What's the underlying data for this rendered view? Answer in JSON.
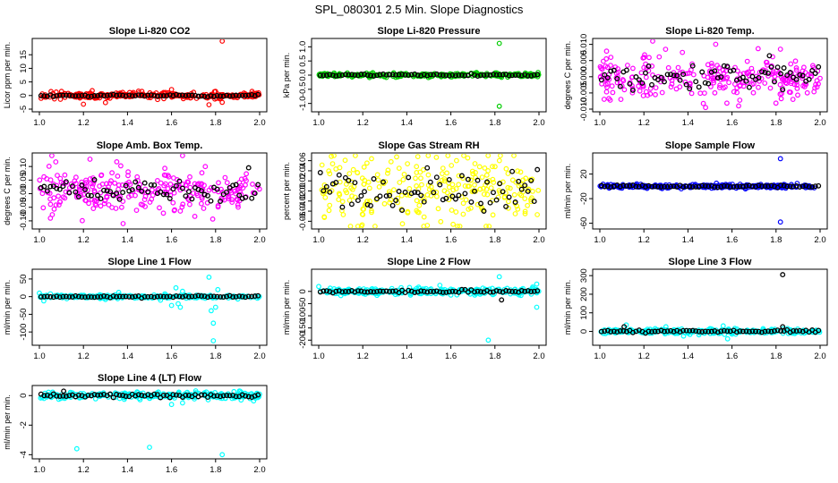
{
  "title": "SPL_080301  2.5 Min. Slope Diagnostics",
  "colors": {
    "red": "#ff0000",
    "green": "#00cc00",
    "magenta": "#ff00ff",
    "yellow": "#ffff00",
    "blue": "#0000ff",
    "cyan": "#00ffff",
    "black": "#000000"
  },
  "chart_data": [
    {
      "type": "scatter",
      "title": "Slope Li-820 CO2",
      "ylabel": "Licor ppm per min.",
      "xlim": [
        1.0,
        2.0
      ],
      "ylim": [
        -5,
        20
      ],
      "xticks": [
        "1.0",
        "1.2",
        "1.4",
        "1.6",
        "1.8",
        "2.0"
      ],
      "yticks": [
        "-5",
        "0",
        "5",
        "10",
        "15"
      ],
      "color": "red",
      "center": 0,
      "spread": 0.7,
      "outliers": [
        [
          1.2,
          -3.2
        ],
        [
          1.24,
          1.8
        ],
        [
          1.3,
          -2.6
        ],
        [
          1.45,
          1.6
        ],
        [
          1.6,
          2.2
        ],
        [
          1.7,
          1.2
        ],
        [
          1.77,
          -3.4
        ],
        [
          1.83,
          20.5
        ],
        [
          1.83,
          -2.5
        ],
        [
          1.8,
          1.5
        ]
      ],
      "black_spread": 0.3,
      "black_outliers": []
    },
    {
      "type": "scatter",
      "title": "Slope Li-820 Pressure",
      "ylabel": "kPa per min.",
      "xlim": [
        1.0,
        2.0
      ],
      "ylim": [
        -1.2,
        1.2
      ],
      "xticks": [
        "1.0",
        "1.2",
        "1.4",
        "1.6",
        "1.8",
        "2.0"
      ],
      "yticks": [
        "-1.0",
        "-0.5",
        "0.0",
        "0.5",
        "1.0"
      ],
      "color": "green",
      "center": 0,
      "spread": 0.04,
      "outliers": [
        [
          1.82,
          1.12
        ],
        [
          1.82,
          -1.1
        ],
        [
          1.83,
          -0.08
        ],
        [
          1.13,
          0.08
        ],
        [
          1.04,
          0.05
        ]
      ],
      "black_spread": 0.03,
      "black_outliers": []
    },
    {
      "type": "scatter",
      "title": "Slope Li-820 Temp.",
      "ylabel": "degrees C per min.",
      "xlim": [
        1.0,
        2.0
      ],
      "ylim": [
        -0.01,
        0.011
      ],
      "xticks": [
        "1.0",
        "1.2",
        "1.4",
        "1.6",
        "1.8",
        "2.0"
      ],
      "yticks": [
        "-0.010",
        "-0.005",
        "0.000",
        "0.005",
        "0.010"
      ],
      "color": "magenta",
      "center": 0,
      "spread": 0.004,
      "outliers": [
        [
          1.24,
          0.011
        ],
        [
          1.48,
          -0.0095
        ],
        [
          1.63,
          -0.009
        ],
        [
          1.82,
          0.0085
        ],
        [
          1.05,
          0.006
        ]
      ],
      "black_spread": 0.0025,
      "black_outliers": [
        [
          1.77,
          0.0065
        ],
        [
          1.83,
          -0.004
        ]
      ]
    },
    {
      "type": "scatter",
      "title": "Slope Amb. Box Temp.",
      "ylabel": "degrees C per min.",
      "xlim": [
        1.0,
        2.0
      ],
      "ylim": [
        -0.12,
        0.14
      ],
      "xticks": [
        "1.0",
        "1.2",
        "1.4",
        "1.6",
        "1.8",
        "2.0"
      ],
      "yticks": [
        "-0.10",
        "-0.05",
        "0.00",
        "0.05",
        "0.10"
      ],
      "color": "magenta",
      "center": 0.01,
      "spread": 0.05,
      "outliers": [
        [
          1.65,
          0.14
        ],
        [
          1.38,
          -0.11
        ],
        [
          1.05,
          -0.09
        ]
      ],
      "black_spread": 0.04,
      "black_outliers": []
    },
    {
      "type": "scatter",
      "title": "Slope Gas Stream RH",
      "ylabel": "percent per min.",
      "xlim": [
        1.0,
        2.0
      ],
      "ylim": [
        -0.07,
        0.07
      ],
      "xticks": [
        "1.0",
        "1.2",
        "1.4",
        "1.6",
        "1.8",
        "2.0"
      ],
      "yticks": [
        "-0.06",
        "-0.04",
        "-0.02",
        "0.00",
        "0.02",
        "0.04",
        "0.06"
      ],
      "color": "yellow",
      "center": 0,
      "spread": 0.04,
      "outliers": [
        [
          1.45,
          0.068
        ],
        [
          1.38,
          -0.065
        ]
      ],
      "black_spread": 0.035,
      "black_outliers": []
    },
    {
      "type": "scatter",
      "title": "Slope Sample Flow",
      "ylabel": "ml/min per min.",
      "xlim": [
        1.0,
        2.0
      ],
      "ylim": [
        -65,
        50
      ],
      "xticks": [
        "1.0",
        "1.2",
        "1.4",
        "1.6",
        "1.8",
        "2.0"
      ],
      "yticks": [
        "-60",
        "-20",
        "20"
      ],
      "color": "blue",
      "center": 0,
      "spread": 2,
      "outliers": [
        [
          1.82,
          45
        ],
        [
          1.82,
          -58
        ],
        [
          1.05,
          3
        ],
        [
          1.1,
          -3
        ]
      ],
      "black_spread": 1.5,
      "black_outliers": []
    },
    {
      "type": "scatter",
      "title": "Slope Line 1 Flow",
      "ylabel": "ml/min per min.",
      "xlim": [
        1.0,
        2.0
      ],
      "ylim": [
        -130,
        70
      ],
      "xticks": [
        "1.0",
        "1.2",
        "1.4",
        "1.6",
        "1.8",
        "2.0"
      ],
      "yticks": [
        "-100",
        "-50",
        "0",
        "50"
      ],
      "color": "cyan",
      "center": 0,
      "spread": 3,
      "outliers": [
        [
          1.0,
          10
        ],
        [
          1.02,
          -12
        ],
        [
          1.05,
          8
        ],
        [
          1.3,
          -8
        ],
        [
          1.36,
          12
        ],
        [
          1.55,
          -10
        ],
        [
          1.57,
          8
        ],
        [
          1.6,
          -25
        ],
        [
          1.62,
          25
        ],
        [
          1.63,
          -20
        ],
        [
          1.65,
          15
        ],
        [
          1.64,
          -30
        ],
        [
          1.77,
          55
        ],
        [
          1.78,
          -40
        ],
        [
          1.79,
          -75
        ],
        [
          1.8,
          -30
        ],
        [
          1.81,
          20
        ],
        [
          1.79,
          -125
        ]
      ],
      "black_spread": 2,
      "black_outliers": []
    },
    {
      "type": "scatter",
      "title": "Slope Line 2 Flow",
      "ylabel": "ml/min per min.",
      "xlim": [
        1.0,
        2.0
      ],
      "ylim": [
        -210,
        80
      ],
      "xticks": [
        "1.0",
        "1.2",
        "1.4",
        "1.6",
        "1.8",
        "2.0"
      ],
      "yticks": [
        "-200",
        "-150",
        "-100",
        "-50",
        "0"
      ],
      "color": "cyan",
      "center": 0,
      "spread": 8,
      "outliers": [
        [
          1.0,
          20
        ],
        [
          1.55,
          25
        ],
        [
          1.6,
          -15
        ],
        [
          1.77,
          -200
        ],
        [
          1.82,
          60
        ],
        [
          1.99,
          -65
        ],
        [
          1.99,
          30
        ]
      ],
      "black_spread": 4,
      "black_outliers": [
        [
          1.83,
          -35
        ]
      ]
    },
    {
      "type": "scatter",
      "title": "Slope Line 3 Flow",
      "ylabel": "ml/min per min.",
      "xlim": [
        1.0,
        2.0
      ],
      "ylim": [
        -60,
        320
      ],
      "xticks": [
        "1.0",
        "1.2",
        "1.4",
        "1.6",
        "1.8",
        "2.0"
      ],
      "yticks": [
        "0",
        "100",
        "200",
        "300"
      ],
      "color": "cyan",
      "center": 0,
      "spread": 8,
      "outliers": [
        [
          1.12,
          35
        ],
        [
          1.3,
          25
        ],
        [
          1.38,
          -25
        ],
        [
          1.45,
          -18
        ],
        [
          1.5,
          15
        ],
        [
          1.56,
          30
        ],
        [
          1.58,
          -40
        ],
        [
          1.6,
          -15
        ]
      ],
      "black_spread": 5,
      "black_outliers": [
        [
          1.11,
          25
        ],
        [
          1.83,
          305
        ],
        [
          1.83,
          25
        ]
      ]
    },
    {
      "type": "scatter",
      "title": "Slope Line 4 (LT) Flow",
      "ylabel": "ml/min per min.",
      "xlim": [
        1.0,
        2.0
      ],
      "ylim": [
        -4.1,
        0.5
      ],
      "xticks": [
        "1.0",
        "1.2",
        "1.4",
        "1.6",
        "1.8",
        "2.0"
      ],
      "yticks": [
        "-4",
        "-2",
        "0"
      ],
      "color": "cyan",
      "center": 0,
      "spread": 0.15,
      "outliers": [
        [
          1.17,
          -3.6
        ],
        [
          1.5,
          -3.5
        ],
        [
          1.83,
          -4.0
        ],
        [
          1.6,
          -0.6
        ],
        [
          1.65,
          -0.5
        ]
      ],
      "black_spread": 0.1,
      "black_outliers": [
        [
          1.11,
          0.3
        ]
      ]
    }
  ]
}
